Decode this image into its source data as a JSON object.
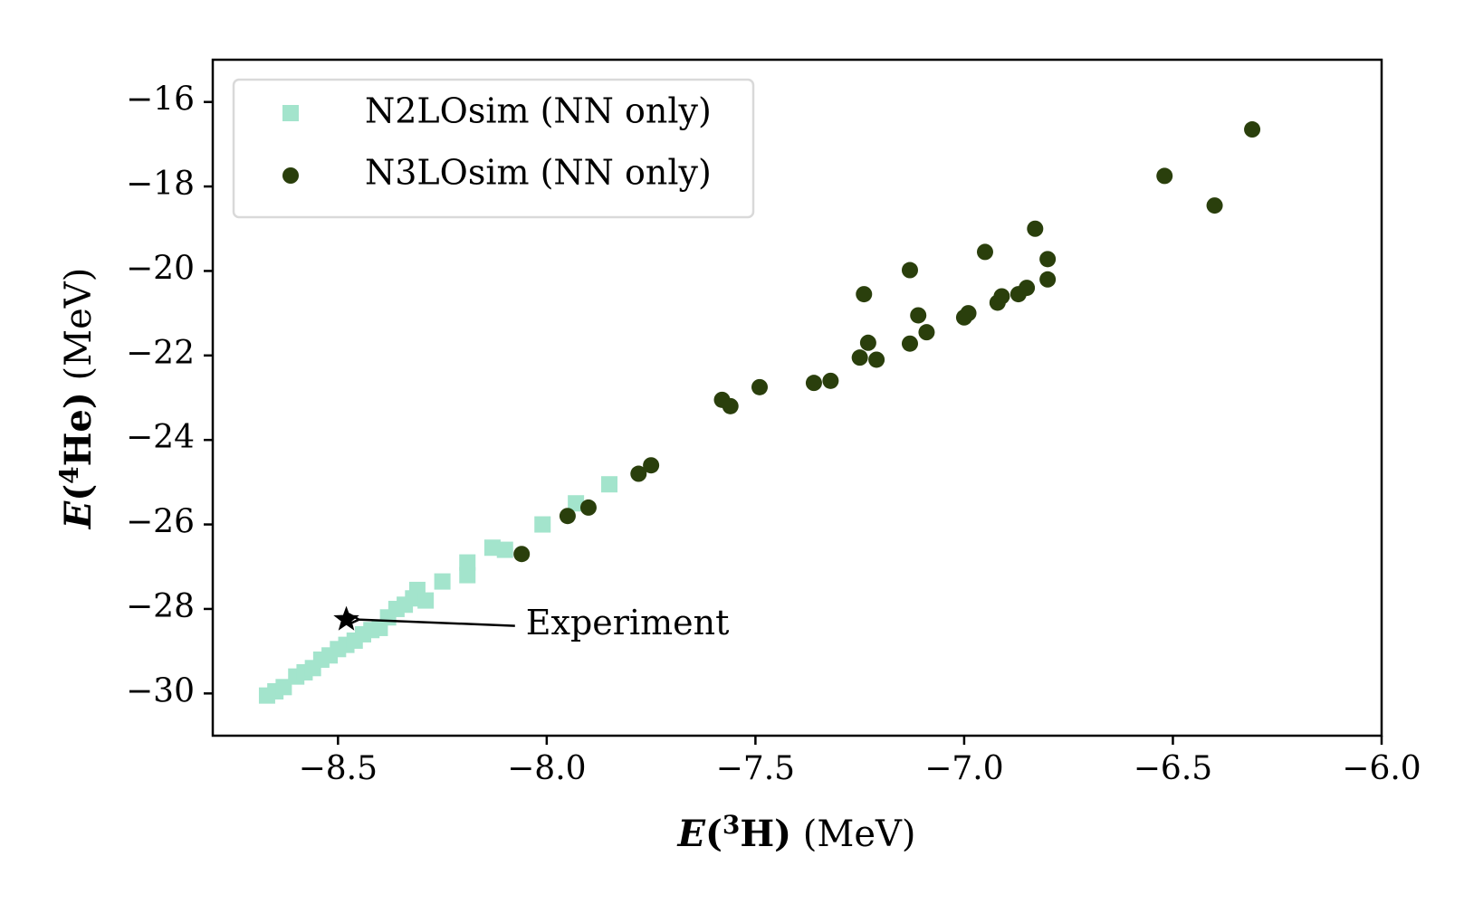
{
  "chart_data": {
    "type": "scatter",
    "xlabel": {
      "prefix": "E",
      "open": "(",
      "sup": "3",
      "element": "H",
      "close": ")",
      "unit": " (MeV)"
    },
    "ylabel": {
      "prefix": "E",
      "open": "(",
      "sup": "4",
      "element": "He",
      "close": ")",
      "unit": " (MeV)"
    },
    "xlim": [
      -8.8,
      -6.0
    ],
    "ylim": [
      -31.0,
      -15.0
    ],
    "xticks": [
      -8.5,
      -8.0,
      -7.5,
      -7.0,
      -6.5,
      -6.0
    ],
    "xtick_labels": [
      "−8.5",
      "−8.0",
      "−7.5",
      "−7.0",
      "−6.5",
      "−6.0"
    ],
    "yticks": [
      -30,
      -28,
      -26,
      -24,
      -22,
      -20,
      -18,
      -16
    ],
    "ytick_labels": [
      "−30",
      "−28",
      "−26",
      "−24",
      "−22",
      "−20",
      "−18",
      "−16"
    ],
    "grid": false,
    "legend_position": "top-left",
    "series": [
      {
        "name": "N2LOsim (NN only)",
        "marker": "square",
        "color": "#a3e4cc",
        "points": [
          [
            -8.67,
            -30.05
          ],
          [
            -8.65,
            -29.95
          ],
          [
            -8.63,
            -29.85
          ],
          [
            -8.6,
            -29.6
          ],
          [
            -8.58,
            -29.5
          ],
          [
            -8.56,
            -29.4
          ],
          [
            -8.54,
            -29.2
          ],
          [
            -8.52,
            -29.1
          ],
          [
            -8.5,
            -28.95
          ],
          [
            -8.48,
            -28.85
          ],
          [
            -8.46,
            -28.75
          ],
          [
            -8.44,
            -28.6
          ],
          [
            -8.42,
            -28.5
          ],
          [
            -8.4,
            -28.45
          ],
          [
            -8.38,
            -28.2
          ],
          [
            -8.36,
            -28.0
          ],
          [
            -8.34,
            -27.9
          ],
          [
            -8.32,
            -27.75
          ],
          [
            -8.31,
            -27.55
          ],
          [
            -8.29,
            -27.8
          ],
          [
            -8.25,
            -27.35
          ],
          [
            -8.19,
            -27.2
          ],
          [
            -8.19,
            -26.9
          ],
          [
            -8.13,
            -26.55
          ],
          [
            -8.1,
            -26.6
          ],
          [
            -8.01,
            -26.0
          ],
          [
            -7.93,
            -25.5
          ],
          [
            -7.85,
            -25.05
          ]
        ]
      },
      {
        "name": "N3LOsim (NN only)",
        "marker": "circle",
        "color": "#2a3f0c",
        "points": [
          [
            -8.06,
            -26.7
          ],
          [
            -7.95,
            -25.8
          ],
          [
            -7.9,
            -25.6
          ],
          [
            -7.78,
            -24.8
          ],
          [
            -7.75,
            -24.6
          ],
          [
            -7.58,
            -23.05
          ],
          [
            -7.56,
            -23.2
          ],
          [
            -7.49,
            -22.75
          ],
          [
            -7.36,
            -22.65
          ],
          [
            -7.32,
            -22.6
          ],
          [
            -7.25,
            -22.05
          ],
          [
            -7.24,
            -20.55
          ],
          [
            -7.23,
            -21.7
          ],
          [
            -7.21,
            -22.1
          ],
          [
            -7.13,
            -19.98
          ],
          [
            -7.13,
            -21.72
          ],
          [
            -7.11,
            -21.05
          ],
          [
            -7.09,
            -21.45
          ],
          [
            -7.0,
            -21.1
          ],
          [
            -6.99,
            -21.0
          ],
          [
            -6.95,
            -19.55
          ],
          [
            -6.92,
            -20.75
          ],
          [
            -6.91,
            -20.6
          ],
          [
            -6.87,
            -20.55
          ],
          [
            -6.85,
            -20.4
          ],
          [
            -6.83,
            -19.0
          ],
          [
            -6.8,
            -19.72
          ],
          [
            -6.8,
            -20.2
          ],
          [
            -6.52,
            -17.75
          ],
          [
            -6.4,
            -18.45
          ],
          [
            -6.31,
            -16.65
          ]
        ]
      }
    ],
    "annotation": {
      "text": "Experiment",
      "marker": "star",
      "point": [
        -8.48,
        -28.25
      ],
      "text_position": [
        -8.05,
        -28.4
      ]
    }
  }
}
